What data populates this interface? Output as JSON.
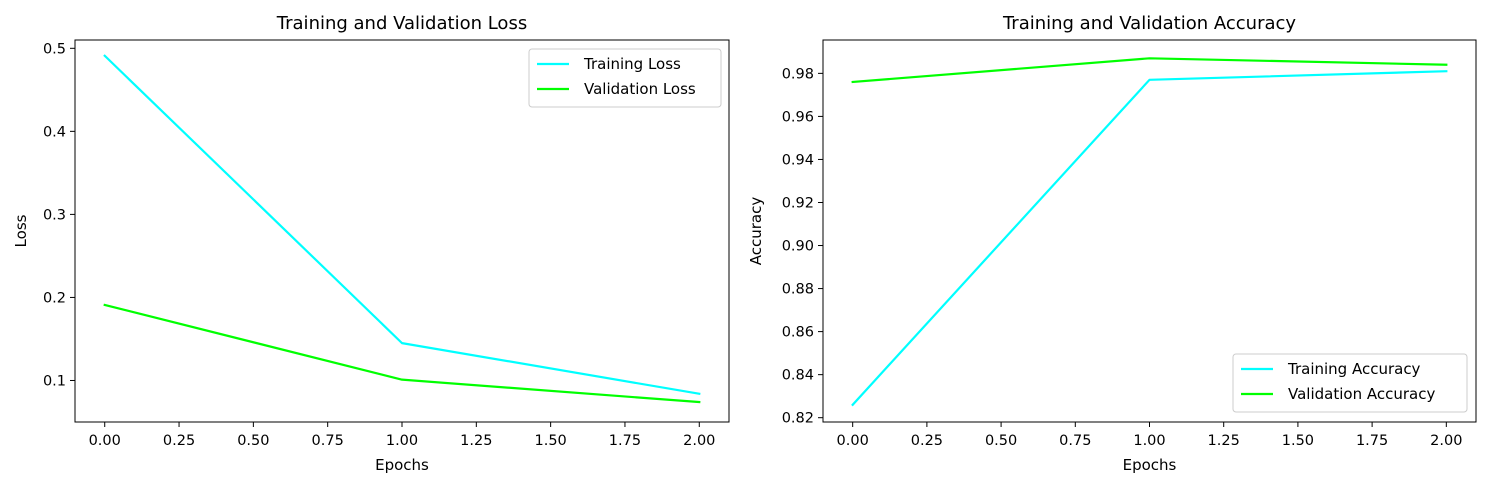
{
  "chart_data": [
    {
      "type": "line",
      "title": "Training and Validation Loss",
      "xlabel": "Epochs",
      "ylabel": "Loss",
      "x": [
        0,
        1,
        2
      ],
      "xlim": [
        -0.1,
        2.1
      ],
      "ylim": [
        0.05,
        0.51
      ],
      "xticks": [
        "0.00",
        "0.25",
        "0.50",
        "0.75",
        "1.00",
        "1.25",
        "1.50",
        "1.75",
        "2.00"
      ],
      "yticks": [
        "0.1",
        "0.2",
        "0.3",
        "0.4",
        "0.5"
      ],
      "grid": false,
      "legend_position": "top-right",
      "series": [
        {
          "name": "Training Loss",
          "values": [
            0.491,
            0.145,
            0.084
          ],
          "color": "#00ffff"
        },
        {
          "name": "Validation Loss",
          "values": [
            0.191,
            0.101,
            0.074
          ],
          "color": "#00ff00"
        }
      ]
    },
    {
      "type": "line",
      "title": "Training and Validation Accuracy",
      "xlabel": "Epochs",
      "ylabel": "Accuracy",
      "x": [
        0,
        1,
        2
      ],
      "xlim": [
        -0.1,
        2.1
      ],
      "ylim": [
        0.818,
        0.9955
      ],
      "xticks": [
        "0.00",
        "0.25",
        "0.50",
        "0.75",
        "1.00",
        "1.25",
        "1.50",
        "1.75",
        "2.00"
      ],
      "yticks": [
        "0.82",
        "0.84",
        "0.86",
        "0.88",
        "0.90",
        "0.92",
        "0.94",
        "0.96",
        "0.98"
      ],
      "grid": false,
      "legend_position": "bottom-right",
      "series": [
        {
          "name": "Training Accuracy",
          "values": [
            0.826,
            0.977,
            0.981
          ],
          "color": "#00ffff"
        },
        {
          "name": "Validation Accuracy",
          "values": [
            0.976,
            0.987,
            0.984
          ],
          "color": "#00ff00"
        }
      ]
    }
  ]
}
